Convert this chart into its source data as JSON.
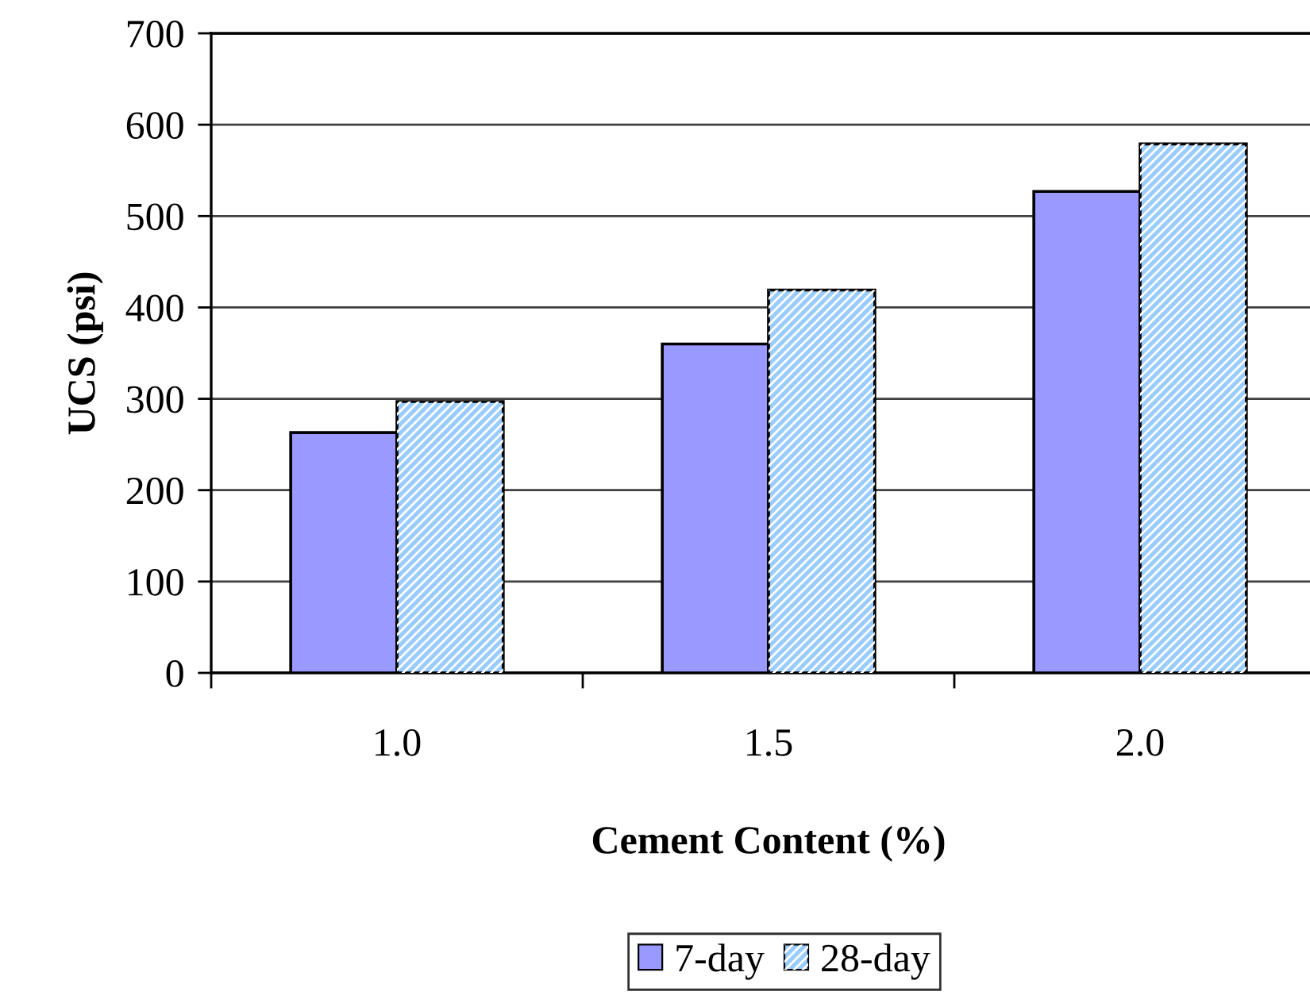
{
  "chart_data": {
    "type": "bar",
    "xlabel": "Cement Content (%)",
    "ylabel": "UCS (psi)",
    "categories": [
      "1.0",
      "1.5",
      "2.0"
    ],
    "series": [
      {
        "name": "7-day",
        "color": "#9999ff",
        "values": [
          263,
          360,
          527
        ]
      },
      {
        "name": "28-day",
        "color": "#99ccff",
        "values": [
          297,
          419,
          579
        ]
      }
    ],
    "ylim": [
      0,
      700
    ],
    "yticks": [
      0,
      100,
      200,
      300,
      400,
      500,
      600,
      700
    ],
    "grid": "y",
    "legend": "bottom"
  }
}
